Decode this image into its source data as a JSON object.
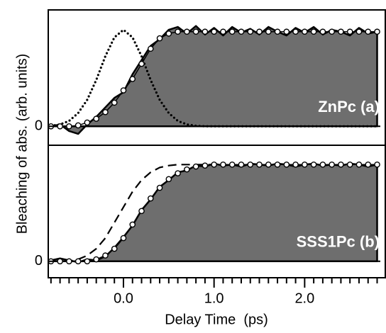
{
  "chart_data": [
    {
      "type": "line",
      "label": "ZnPc (a)",
      "ylabel": "Bleaching of abs. (arb. units)",
      "x": [
        -0.8,
        -0.7,
        -0.6,
        -0.5,
        -0.4,
        -0.3,
        -0.2,
        -0.1,
        0,
        0.1,
        0.2,
        0.3,
        0.4,
        0.5,
        0.6,
        0.7,
        0.8,
        0.9,
        1.0,
        1.1,
        1.2,
        1.3,
        1.4,
        1.5,
        1.6,
        1.7,
        1.8,
        1.9,
        2.0,
        2.1,
        2.2,
        2.3,
        2.4,
        2.5,
        2.6,
        2.7,
        2.8
      ],
      "xlim": [
        -0.83,
        2.89
      ],
      "ylim": [
        -0.2,
        1.23
      ],
      "yticks": [
        0
      ],
      "ytick_lines": "dashed",
      "series": [
        {
          "style": "area",
          "color": "#6e6e6e",
          "values": [
            0.0,
            0.02,
            -0.05,
            -0.08,
            0.02,
            0.1,
            0.2,
            0.3,
            0.36,
            0.55,
            0.7,
            0.85,
            0.92,
            1.02,
            1.05,
            0.98,
            1.06,
            0.97,
            1.04,
            0.96,
            1.05,
            0.99,
            1.03,
            0.97,
            1.05,
            1.0,
            0.96,
            1.04,
            0.99,
            1.05,
            0.97,
            1.02,
            1.0,
            0.96,
            1.04,
            0.98,
            1.0
          ]
        },
        {
          "style": "dotted",
          "color": "#000000",
          "values": [
            0.006,
            0.02,
            0.057,
            0.14,
            0.28,
            0.49,
            0.74,
            0.94,
            1.02,
            0.94,
            0.74,
            0.49,
            0.28,
            0.14,
            0.057,
            0.02,
            0.006,
            0,
            0,
            0,
            0,
            0,
            0,
            0,
            0,
            0,
            0,
            0,
            0,
            0,
            0,
            0,
            0,
            0,
            0,
            0,
            0
          ]
        },
        {
          "style": "circles",
          "color": "#000000",
          "values": [
            0,
            0,
            0,
            0.01,
            0.04,
            0.08,
            0.15,
            0.25,
            0.38,
            0.5,
            0.66,
            0.82,
            0.93,
            0.98,
            1,
            1,
            1,
            1,
            1,
            1,
            1,
            1,
            1,
            1,
            1,
            1,
            1,
            1,
            1,
            1,
            1,
            1,
            1,
            1,
            1,
            1,
            1
          ]
        }
      ]
    },
    {
      "type": "line",
      "label": "SSS1Pc (b)",
      "xlabel": "Delay Time  (ps)",
      "x": [
        -0.8,
        -0.7,
        -0.6,
        -0.5,
        -0.4,
        -0.3,
        -0.2,
        -0.1,
        0,
        0.1,
        0.2,
        0.3,
        0.4,
        0.5,
        0.6,
        0.7,
        0.8,
        0.9,
        1.0,
        1.1,
        1.2,
        1.3,
        1.4,
        1.5,
        1.6,
        1.7,
        1.8,
        1.9,
        2.0,
        2.1,
        2.2,
        2.3,
        2.4,
        2.5,
        2.6,
        2.7,
        2.8
      ],
      "xlim": [
        -0.83,
        2.89
      ],
      "ylim": [
        -0.17,
        1.2
      ],
      "yticks": [
        0
      ],
      "ytick_lines": "dashed",
      "xticks": [
        {
          "value": 0,
          "label": "0.0"
        },
        {
          "value": 1,
          "label": "1.0"
        },
        {
          "value": 2,
          "label": "2.0"
        }
      ],
      "xminorticks": [
        -0.8,
        -0.7,
        -0.6,
        -0.5,
        -0.4,
        -0.3,
        -0.2,
        -0.1,
        0.1,
        0.2,
        0.3,
        0.4,
        0.5,
        0.6,
        0.7,
        0.8,
        0.9,
        1.1,
        1.2,
        1.3,
        1.4,
        1.5,
        1.6,
        1.7,
        1.8,
        1.9,
        2.1,
        2.2,
        2.3,
        2.4,
        2.5,
        2.6,
        2.7,
        2.8
      ],
      "series": [
        {
          "style": "area",
          "color": "#6e6e6e",
          "values": [
            0.01,
            0.03,
            0.01,
            -0.01,
            0.02,
            0.01,
            0.05,
            0.14,
            0.25,
            0.37,
            0.53,
            0.64,
            0.77,
            0.84,
            0.92,
            0.94,
            0.99,
            0.98,
            1.01,
            0.99,
            1.0,
            0.98,
            1.01,
            1.0,
            0.99,
            1.01,
            1.0,
            0.98,
            1.0,
            1.01,
            0.99,
            1.0,
            0.99,
            1.01,
            1.0,
            0.98,
            1.0
          ]
        },
        {
          "style": "dashed",
          "color": "#000000",
          "values": [
            0,
            0,
            0,
            0.02,
            0.06,
            0.13,
            0.24,
            0.4,
            0.56,
            0.72,
            0.84,
            0.92,
            0.97,
            0.99,
            1,
            1,
            1,
            1,
            1,
            1,
            null,
            null,
            null,
            null,
            null,
            null,
            null,
            null,
            null,
            null,
            null,
            null,
            null,
            null,
            null,
            null,
            null
          ]
        },
        {
          "style": "circles",
          "color": "#000000",
          "values": [
            0,
            0,
            0,
            0,
            0,
            0.02,
            0.06,
            0.13,
            0.24,
            0.38,
            0.52,
            0.65,
            0.76,
            0.85,
            0.91,
            0.95,
            0.98,
            0.99,
            1,
            1,
            1,
            1,
            1,
            1,
            1,
            1,
            1,
            1,
            1,
            1,
            1,
            1,
            1,
            1,
            1,
            1,
            1
          ]
        }
      ]
    }
  ]
}
